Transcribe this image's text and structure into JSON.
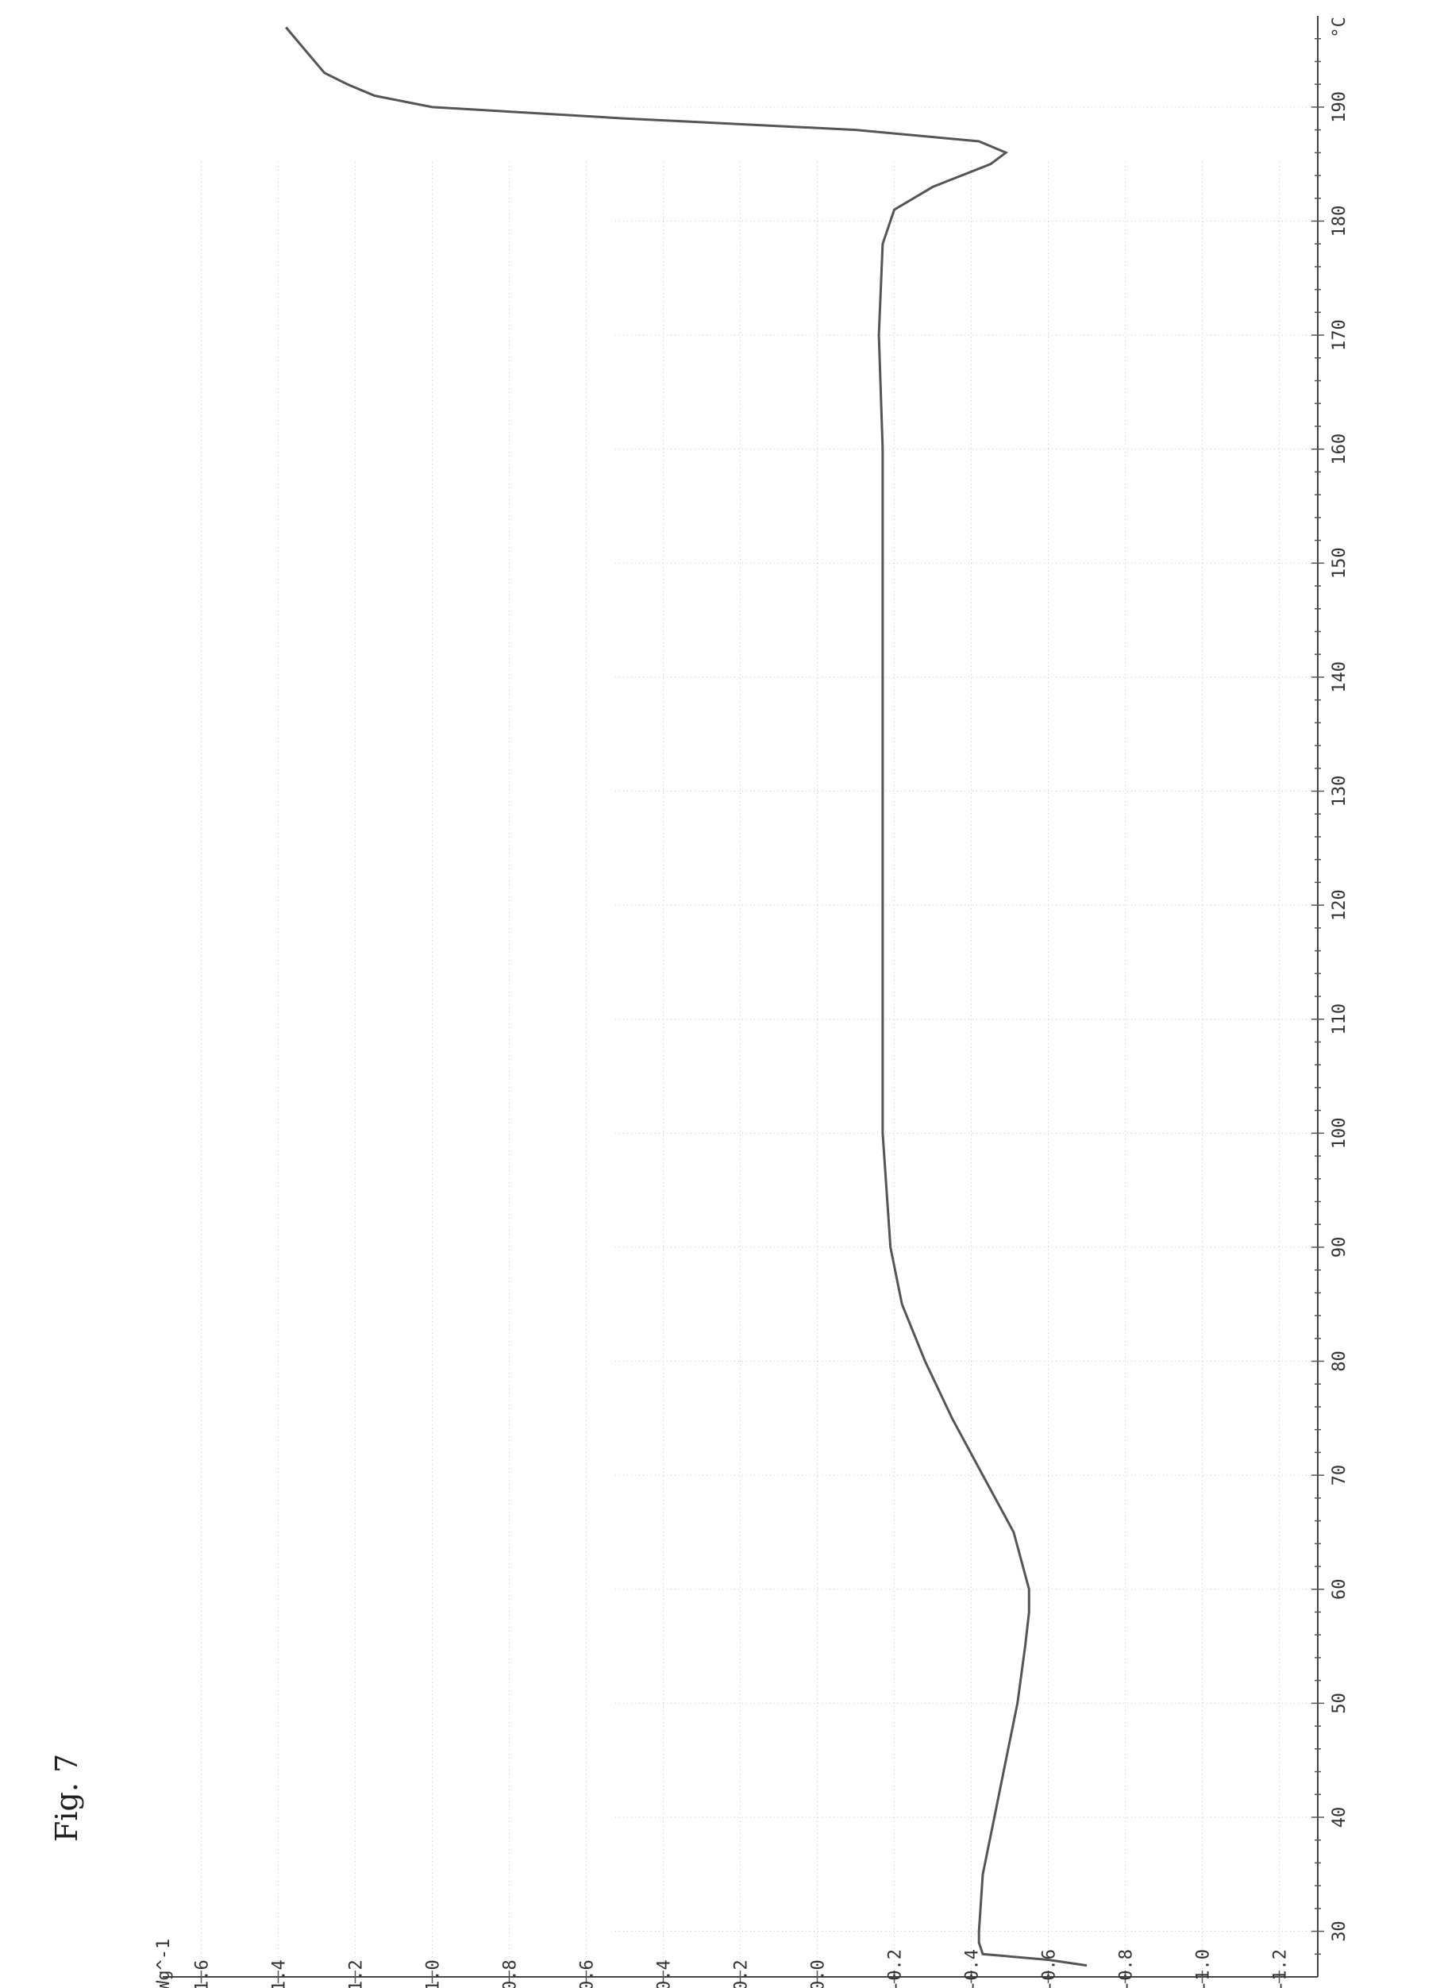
{
  "figure_label": "Fig. 7",
  "chart_data": {
    "type": "line",
    "title": "",
    "xlabel": "",
    "ylabel": "",
    "x_unit": "°C",
    "y_unit": "Wg^-1",
    "xlim": [
      26,
      198
    ],
    "ylim": [
      -1.3,
      1.7
    ],
    "x_ticks": [
      30,
      40,
      50,
      60,
      70,
      80,
      90,
      100,
      110,
      120,
      130,
      140,
      150,
      160,
      170,
      180,
      190
    ],
    "x_tick_labels": [
      "30",
      "40",
      "50",
      "60",
      "70",
      "80",
      "90",
      "100",
      "110",
      "120",
      "130",
      "140",
      "150",
      "160",
      "170",
      "180",
      "190"
    ],
    "y_ticks": [
      1.6,
      1.4,
      1.2,
      1.0,
      0.8,
      0.6,
      0.4,
      0.2,
      0.0,
      -0.2,
      -0.4,
      -0.6,
      -0.8,
      -1.0,
      -1.2
    ],
    "y_tick_labels": [
      "1.6",
      "1.4",
      "1.2",
      "1.0",
      "0.8",
      "0.6",
      "0.4",
      "0.2",
      "0.0",
      "-0.2",
      "-0.4",
      "-0.6",
      "-0.8",
      "-1.0",
      "-1.2"
    ],
    "grid": true,
    "series": [
      {
        "x": [
          27,
          27.5,
          28,
          29,
          30,
          35,
          40,
          45,
          50,
          55,
          58,
          60,
          65,
          70,
          75,
          80,
          85,
          90,
          95,
          100,
          110,
          120,
          130,
          140,
          150,
          160,
          170,
          178,
          181,
          183,
          185,
          186,
          187,
          188,
          189,
          190,
          191,
          192,
          193,
          195,
          197
        ],
        "y": [
          -0.7,
          -0.6,
          -0.43,
          -0.42,
          -0.42,
          -0.43,
          -0.46,
          -0.49,
          -0.52,
          -0.54,
          -0.55,
          -0.55,
          -0.51,
          -0.43,
          -0.35,
          -0.28,
          -0.22,
          -0.19,
          -0.18,
          -0.17,
          -0.17,
          -0.17,
          -0.17,
          -0.17,
          -0.17,
          -0.17,
          -0.16,
          -0.17,
          -0.2,
          -0.3,
          -0.45,
          -0.49,
          -0.42,
          -0.1,
          0.5,
          1.0,
          1.15,
          1.22,
          1.28,
          1.33,
          1.38
        ]
      }
    ]
  }
}
